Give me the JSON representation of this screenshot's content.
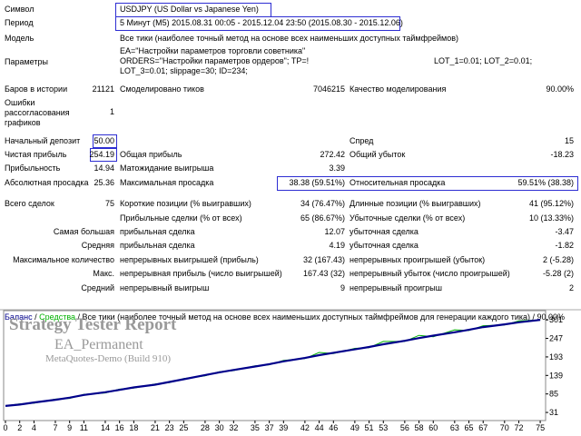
{
  "report": {
    "texts": [
      "Символ",
      "USDJPY (US Dollar vs Japanese Yen)",
      "Период",
      "5 Минут (M5) 2015.08.31 00:05 - 2015.12.04 23:50 (2015.08.30 - 2015.12.06)",
      "Модель",
      "Все тики (наиболее точный метод на основе всех наименьших доступных таймфреймов)",
      "Параметры",
      "EA=\"Настройки параметров торговли советника\"",
      "ORDERS=\"Настройки параметров ордеров\"; TP=!",
      "LOT_3=0.01; slippage=30; ID=234;",
      "LOT_1=0.01; LOT_2=0.01;",
      "Баров в истории",
      "21121",
      "Смоделировано тиков",
      "7046215",
      "Качество моделирования",
      "90.00%",
      "Ошибки рассогласования графиков",
      "1",
      "Начальный депозит",
      "50.00",
      "Спред",
      "15",
      "Чистая прибыль",
      "254.19",
      "Общая прибыль",
      "272.42",
      "Общий убыток",
      "-18.23",
      "Прибыльность",
      "14.94",
      "Матожидание выигрыша",
      "3.39",
      "Абсолютная просадка",
      "25.36",
      "Максимальная просадка",
      "38.38 (59.51%)",
      "Относительная просадка",
      "59.51% (38.38)",
      "Всего сделок",
      "75",
      "Короткие позиции (% выигравших)",
      "34 (76.47%)",
      "Длинные позиции (% выигравших)",
      "41 (95.12%)",
      "Прибыльные сделки (% от всех)",
      "65 (86.67%)",
      "Убыточные сделки (% от всех)",
      "10 (13.33%)",
      "Самая большая",
      "прибыльная сделка",
      "12.07",
      "убыточная сделка",
      "-3.47",
      "Средняя",
      "прибыльная сделка",
      "4.19",
      "убыточная сделка",
      "-1.82",
      "Максимальное количество",
      "непрерывных выигрышей (прибыль)",
      "32 (167.43)",
      "непрерывных проигрышей (убыток)",
      "2 (-5.28)",
      "Макс.",
      "непрерывная прибыль (число выигрышей)",
      "167.43 (32)",
      "непрерывный убыток (число проигрышей)",
      "-5.28 (2)",
      "Средний",
      "непрерывный выигрыш",
      "9",
      "непрерывный проигрыш",
      "2"
    ]
  },
  "chart_data": {
    "type": "line",
    "subtitle": "/ Все тики (наиболее точный метод на основе всех наименьших доступных таймфреймов для генерации каждого тика) / 90.00%",
    "legend_separator": "/",
    "watermark": [
      "Strategy Tester Report",
      "EA_Permanent",
      "MetaQuotes-Demo (Build 910)"
    ],
    "x": [
      0,
      2,
      4,
      7,
      9,
      11,
      14,
      16,
      18,
      21,
      23,
      25,
      28,
      30,
      32,
      35,
      37,
      39,
      42,
      44,
      46,
      49,
      51,
      53,
      56,
      58,
      60,
      63,
      65,
      67,
      70,
      72,
      75
    ],
    "series": [
      {
        "name": "Баланс",
        "color": "#00008b",
        "values": [
          50,
          54,
          60,
          68,
          74,
          82,
          90,
          97,
          104,
          112,
          120,
          128,
          140,
          148,
          155,
          165,
          172,
          180,
          190,
          198,
          205,
          215,
          222,
          230,
          240,
          248,
          255,
          265,
          272,
          280,
          288,
          294,
          301
        ]
      },
      {
        "name": "Средства",
        "color": "#00b000",
        "values": [
          50,
          56,
          58,
          70,
          72,
          84,
          88,
          99,
          102,
          114,
          118,
          130,
          138,
          150,
          153,
          167,
          170,
          183,
          188,
          206,
          203,
          218,
          220,
          238,
          238,
          256,
          252,
          272,
          270,
          284,
          286,
          298,
          301
        ]
      }
    ],
    "xlim": [
      0,
      75.5
    ],
    "xticks": [
      0,
      2,
      4,
      7,
      9,
      11,
      14,
      16,
      18,
      21,
      23,
      25,
      28,
      30,
      32,
      35,
      37,
      39,
      42,
      44,
      46,
      49,
      51,
      53,
      56,
      58,
      60,
      63,
      65,
      67,
      70,
      72,
      75
    ],
    "ylim": [
      10,
      320
    ],
    "yticks": [
      31,
      85,
      139,
      193,
      247,
      301
    ]
  }
}
